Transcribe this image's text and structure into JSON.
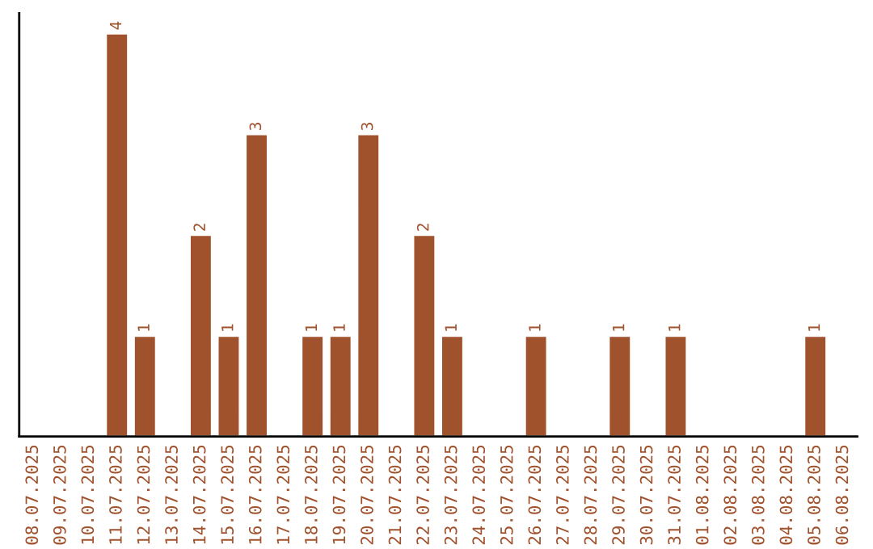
{
  "chart_data": {
    "type": "bar",
    "categories": [
      "08.07.2025",
      "09.07.2025",
      "10.07.2025",
      "11.07.2025",
      "12.07.2025",
      "13.07.2025",
      "14.07.2025",
      "15.07.2025",
      "16.07.2025",
      "17.07.2025",
      "18.07.2025",
      "19.07.2025",
      "20.07.2025",
      "21.07.2025",
      "22.07.2025",
      "23.07.2025",
      "24.07.2025",
      "25.07.2025",
      "26.07.2025",
      "27.07.2025",
      "28.07.2025",
      "29.07.2025",
      "30.07.2025",
      "31.07.2025",
      "01.08.2025",
      "02.08.2025",
      "03.08.2025",
      "04.08.2025",
      "05.08.2025",
      "06.08.2025"
    ],
    "values": [
      null,
      null,
      null,
      4,
      1,
      null,
      2,
      1,
      3,
      null,
      1,
      1,
      3,
      null,
      2,
      1,
      null,
      null,
      1,
      null,
      null,
      1,
      null,
      1,
      null,
      null,
      null,
      null,
      1,
      null
    ],
    "value_labels": [
      null,
      null,
      null,
      "4",
      "1",
      null,
      "2",
      "1",
      "3",
      null,
      "1",
      "1",
      "3",
      null,
      "2",
      "1",
      null,
      null,
      "1",
      null,
      null,
      "1",
      null,
      "1",
      null,
      null,
      null,
      null,
      "1",
      null
    ],
    "color": "#a0522d",
    "ylim": [
      0,
      4.2
    ],
    "tick_labels": "x",
    "grid": false,
    "legend": false
  }
}
